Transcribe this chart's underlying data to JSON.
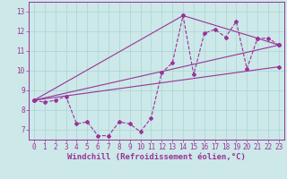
{
  "xlabel": "Windchill (Refroidissement éolien,°C)",
  "background_color": "#cce8e8",
  "line_color": "#993399",
  "xlim": [
    -0.5,
    23.5
  ],
  "ylim": [
    6.5,
    13.5
  ],
  "yticks": [
    7,
    8,
    9,
    10,
    11,
    12,
    13
  ],
  "xticks": [
    0,
    1,
    2,
    3,
    4,
    5,
    6,
    7,
    8,
    9,
    10,
    11,
    12,
    13,
    14,
    15,
    16,
    17,
    18,
    19,
    20,
    21,
    22,
    23
  ],
  "series1_x": [
    0,
    1,
    2,
    3,
    4,
    5,
    6,
    7,
    8,
    9,
    10,
    11,
    12,
    13,
    14,
    15,
    16,
    17,
    18,
    19,
    20,
    21,
    22,
    23
  ],
  "series1_y": [
    8.5,
    8.4,
    8.5,
    8.7,
    7.3,
    7.4,
    6.7,
    6.7,
    7.4,
    7.3,
    6.9,
    7.6,
    9.9,
    10.4,
    12.8,
    9.8,
    11.9,
    12.1,
    11.7,
    12.5,
    10.1,
    11.65,
    11.65,
    11.3
  ],
  "series2_x": [
    0,
    23
  ],
  "series2_y": [
    8.5,
    10.2
  ],
  "series3_x": [
    0,
    14,
    21,
    23
  ],
  "series3_y": [
    8.5,
    12.8,
    11.65,
    11.3
  ],
  "series4_x": [
    0,
    23
  ],
  "series4_y": [
    8.5,
    11.3
  ],
  "grid_color": "#aad4d4",
  "tick_fontsize": 5.5,
  "xlabel_fontsize": 6.5
}
